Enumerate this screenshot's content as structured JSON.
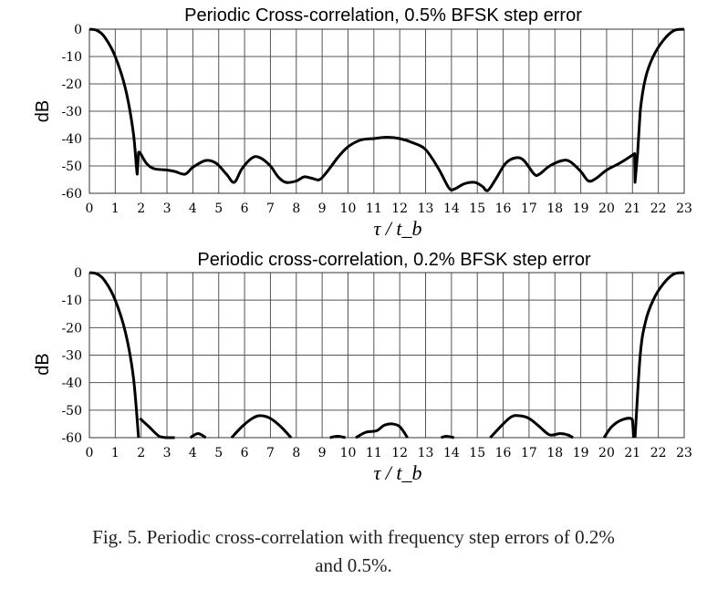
{
  "chart_data": [
    {
      "type": "line",
      "title": "Periodic Cross-correlation, 0.5% BFSK step error",
      "xlabel": "τ / t_b",
      "ylabel": "dB",
      "xlim": [
        0,
        23
      ],
      "ylim": [
        -60,
        0
      ],
      "xticks": [
        0,
        1,
        2,
        3,
        4,
        5,
        6,
        7,
        8,
        9,
        10,
        11,
        12,
        13,
        14,
        15,
        16,
        17,
        18,
        19,
        20,
        21,
        22,
        23
      ],
      "yticks": [
        0,
        -10,
        -20,
        -30,
        -40,
        -50,
        -60
      ],
      "grid": true,
      "line_color": "#000000",
      "points": [
        [
          0,
          0
        ],
        [
          0.3,
          -0.5
        ],
        [
          0.6,
          -3
        ],
        [
          1.0,
          -10
        ],
        [
          1.4,
          -22
        ],
        [
          1.7,
          -38
        ],
        [
          1.85,
          -53
        ],
        [
          1.9,
          -45
        ],
        [
          2.2,
          -49
        ],
        [
          2.5,
          -51
        ],
        [
          3.0,
          -51.5
        ],
        [
          3.3,
          -52
        ],
        [
          3.7,
          -53
        ],
        [
          4.0,
          -50.5
        ],
        [
          4.5,
          -48
        ],
        [
          4.9,
          -49
        ],
        [
          5.3,
          -53
        ],
        [
          5.6,
          -56
        ],
        [
          5.9,
          -51
        ],
        [
          6.3,
          -47
        ],
        [
          6.6,
          -47
        ],
        [
          7.0,
          -50
        ],
        [
          7.3,
          -54
        ],
        [
          7.6,
          -56
        ],
        [
          8.0,
          -55.5
        ],
        [
          8.3,
          -54
        ],
        [
          8.6,
          -54.5
        ],
        [
          8.9,
          -55
        ],
        [
          9.2,
          -52
        ],
        [
          9.6,
          -47
        ],
        [
          10,
          -43
        ],
        [
          10.5,
          -40.5
        ],
        [
          11,
          -40
        ],
        [
          11.5,
          -39.5
        ],
        [
          12,
          -40
        ],
        [
          12.5,
          -41.5
        ],
        [
          13,
          -44
        ],
        [
          13.5,
          -51
        ],
        [
          13.9,
          -58
        ],
        [
          14.1,
          -58.5
        ],
        [
          14.5,
          -56.5
        ],
        [
          14.9,
          -56
        ],
        [
          15.2,
          -57.5
        ],
        [
          15.4,
          -59
        ],
        [
          15.7,
          -55
        ],
        [
          16.1,
          -49
        ],
        [
          16.5,
          -47
        ],
        [
          16.8,
          -48
        ],
        [
          17.2,
          -53
        ],
        [
          17.4,
          -53
        ],
        [
          17.8,
          -50
        ],
        [
          18.3,
          -48
        ],
        [
          18.6,
          -48.5
        ],
        [
          19.0,
          -52
        ],
        [
          19.3,
          -55.5
        ],
        [
          19.6,
          -54.5
        ],
        [
          20.0,
          -51.5
        ],
        [
          20.5,
          -49
        ],
        [
          21.0,
          -46
        ],
        [
          21.08,
          -45.5
        ],
        [
          21.1,
          -56
        ],
        [
          21.2,
          -45
        ],
        [
          21.3,
          -30
        ],
        [
          21.5,
          -18
        ],
        [
          21.8,
          -10
        ],
        [
          22.2,
          -4
        ],
        [
          22.6,
          -0.5
        ],
        [
          23,
          0
        ]
      ]
    },
    {
      "type": "line",
      "title": "Periodic cross-correlation, 0.2% BFSK step error",
      "xlabel": "τ / t_b",
      "ylabel": "dB",
      "xlim": [
        0,
        23
      ],
      "ylim": [
        -60,
        0
      ],
      "xticks": [
        0,
        1,
        2,
        3,
        4,
        5,
        6,
        7,
        8,
        9,
        10,
        11,
        12,
        13,
        14,
        15,
        16,
        17,
        18,
        19,
        20,
        21,
        22,
        23
      ],
      "yticks": [
        0,
        -10,
        -20,
        -30,
        -40,
        -50,
        -60
      ],
      "grid": true,
      "line_color": "#000000",
      "points": [
        [
          0,
          0
        ],
        [
          0.3,
          -0.5
        ],
        [
          0.6,
          -3
        ],
        [
          1,
          -10
        ],
        [
          1.4,
          -22
        ],
        [
          1.7,
          -38
        ],
        [
          1.9,
          -60
        ],
        null,
        [
          1.95,
          -53
        ],
        [
          2.3,
          -56
        ],
        [
          2.7,
          -59.5
        ],
        [
          3.0,
          -60
        ],
        [
          3.3,
          -60
        ],
        null,
        [
          3.9,
          -60
        ],
        [
          4.2,
          -58.5
        ],
        [
          4.5,
          -60
        ],
        null,
        [
          5.5,
          -60
        ],
        [
          5.9,
          -56
        ],
        [
          6.3,
          -53
        ],
        [
          6.6,
          -52
        ],
        [
          7.0,
          -53
        ],
        [
          7.4,
          -56
        ],
        [
          7.8,
          -60
        ],
        null,
        [
          9.3,
          -60
        ],
        [
          9.6,
          -59.5
        ],
        [
          9.9,
          -60
        ],
        null,
        [
          10.3,
          -60
        ],
        [
          10.7,
          -58
        ],
        [
          11.1,
          -57.5
        ],
        [
          11.4,
          -55.5
        ],
        [
          11.7,
          -55
        ],
        [
          12.0,
          -56
        ],
        [
          12.3,
          -60
        ],
        null,
        [
          13.6,
          -60
        ],
        [
          13.8,
          -59.5
        ],
        [
          14.1,
          -60
        ],
        null,
        [
          15.5,
          -60
        ],
        [
          15.9,
          -56
        ],
        [
          16.3,
          -52.5
        ],
        [
          16.6,
          -52
        ],
        [
          17,
          -53
        ],
        [
          17.4,
          -56
        ],
        [
          17.8,
          -59
        ],
        [
          18.2,
          -58.5
        ],
        [
          18.5,
          -59
        ],
        [
          18.7,
          -60
        ],
        null,
        [
          19.9,
          -60
        ],
        [
          20.2,
          -56
        ],
        [
          20.6,
          -53.5
        ],
        [
          21.0,
          -53.5
        ],
        [
          21.05,
          -60
        ],
        null,
        [
          21.1,
          -60
        ],
        [
          21.3,
          -30
        ],
        [
          21.5,
          -18
        ],
        [
          21.8,
          -10
        ],
        [
          22.2,
          -4
        ],
        [
          22.6,
          -0.5
        ],
        [
          23,
          0
        ]
      ]
    }
  ],
  "caption": {
    "line1": "Fig. 5.    Periodic cross-correlation with frequency step errors of 0.2%",
    "line2": "and 0.5%."
  }
}
